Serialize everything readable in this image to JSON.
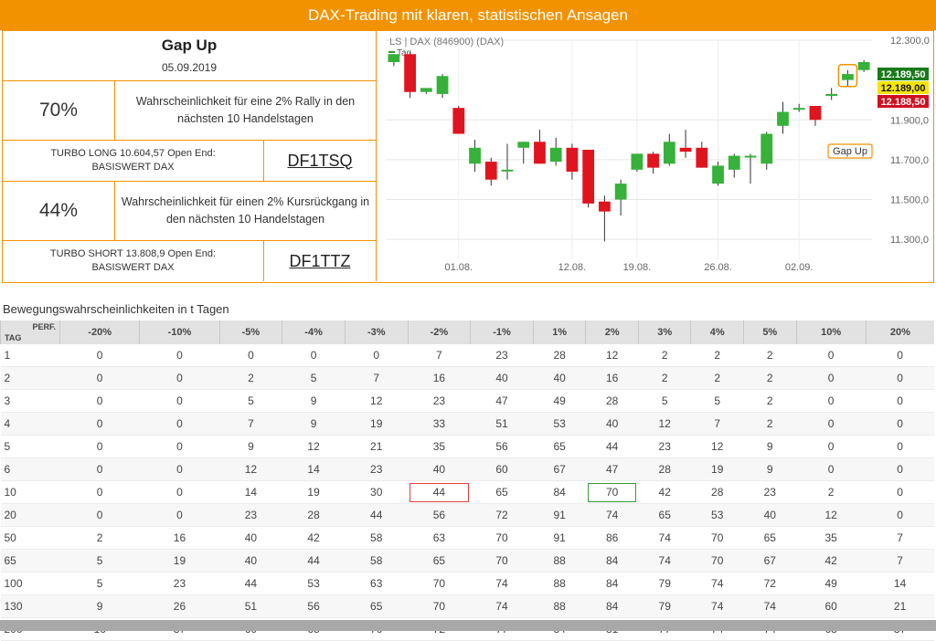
{
  "banner": "DAX-Trading mit klaren, statistischen Ansagen",
  "signal": {
    "title": "Gap Up",
    "date": "05.09.2019"
  },
  "long": {
    "pct": "70%",
    "desc": "Wahrscheinlichkeit für eine 2% Rally in den nächsten 10 Handelstagen",
    "turbo_line1": "TURBO LONG 10.604,57 Open End:",
    "turbo_line2": "BASISWERT DAX",
    "wkn": "DF1TSQ"
  },
  "short": {
    "pct": "44%",
    "desc": "Wahrscheinlichkeit für einen 2% Kursrückgang in den nächsten 10 Handelstagen",
    "turbo_line1": "TURBO SHORT 13.808,9 Open End:",
    "turbo_line2": "BASISWERT DAX",
    "wkn": "DF1TTZ"
  },
  "chart_data": {
    "type": "candlestick",
    "title": "LS | DAX (846900) (DAX)",
    "legend": "Tag",
    "ylim": [
      11200,
      12300
    ],
    "yticks": [
      12300,
      11900,
      11700,
      11500,
      11300
    ],
    "ytick_labels": [
      "12.300,0",
      "11.900,0",
      "11.700,0",
      "11.500,0",
      "11.300,0"
    ],
    "xtick_labels": [
      "01.08.",
      "12.08.",
      "19.08.",
      "26.08.",
      "02.09."
    ],
    "xtick_index": [
      4,
      11,
      15,
      20,
      25
    ],
    "price_tags": [
      {
        "label": "12.189,50",
        "value": 12189.5,
        "color": "#1a7a1a"
      },
      {
        "label": "12.189,00",
        "value": 12189.0,
        "color": "#f5e600"
      },
      {
        "label": "12.188,50",
        "value": 12188.5,
        "color": "#d01020"
      }
    ],
    "annotation": {
      "label": "Gap Up",
      "index": 28
    },
    "candles": [
      {
        "o": 12190,
        "h": 12230,
        "l": 12170,
        "c": 12230
      },
      {
        "o": 12230,
        "h": 12240,
        "l": 12010,
        "c": 12040
      },
      {
        "o": 12040,
        "h": 12060,
        "l": 12030,
        "c": 12060
      },
      {
        "o": 12030,
        "h": 12130,
        "l": 12010,
        "c": 12120
      },
      {
        "o": 11960,
        "h": 11970,
        "l": 11830,
        "c": 11830
      },
      {
        "o": 11680,
        "h": 11800,
        "l": 11640,
        "c": 11760
      },
      {
        "o": 11690,
        "h": 11710,
        "l": 11570,
        "c": 11600
      },
      {
        "o": 11650,
        "h": 11780,
        "l": 11600,
        "c": 11650
      },
      {
        "o": 11760,
        "h": 11790,
        "l": 11680,
        "c": 11790
      },
      {
        "o": 11790,
        "h": 11850,
        "l": 11680,
        "c": 11680
      },
      {
        "o": 11690,
        "h": 11810,
        "l": 11670,
        "c": 11760
      },
      {
        "o": 11760,
        "h": 11780,
        "l": 11600,
        "c": 11640
      },
      {
        "o": 11750,
        "h": 11750,
        "l": 11460,
        "c": 11480
      },
      {
        "o": 11490,
        "h": 11520,
        "l": 11290,
        "c": 11440
      },
      {
        "o": 11500,
        "h": 11600,
        "l": 11420,
        "c": 11580
      },
      {
        "o": 11650,
        "h": 11730,
        "l": 11640,
        "c": 11730
      },
      {
        "o": 11730,
        "h": 11740,
        "l": 11630,
        "c": 11660
      },
      {
        "o": 11680,
        "h": 11830,
        "l": 11670,
        "c": 11790
      },
      {
        "o": 11760,
        "h": 11850,
        "l": 11710,
        "c": 11740
      },
      {
        "o": 11760,
        "h": 11790,
        "l": 11660,
        "c": 11660
      },
      {
        "o": 11580,
        "h": 11690,
        "l": 11570,
        "c": 11670
      },
      {
        "o": 11650,
        "h": 11730,
        "l": 11610,
        "c": 11720
      },
      {
        "o": 11720,
        "h": 11730,
        "l": 11580,
        "c": 11720
      },
      {
        "o": 11680,
        "h": 11840,
        "l": 11650,
        "c": 11830
      },
      {
        "o": 11870,
        "h": 11990,
        "l": 11830,
        "c": 11940
      },
      {
        "o": 11960,
        "h": 11980,
        "l": 11940,
        "c": 11960
      },
      {
        "o": 11970,
        "h": 11970,
        "l": 11870,
        "c": 11900
      },
      {
        "o": 12020,
        "h": 12060,
        "l": 12000,
        "c": 12030
      },
      {
        "o": 12100,
        "h": 12150,
        "l": 12070,
        "c": 12130
      },
      {
        "o": 12150,
        "h": 12200,
        "l": 12140,
        "c": 12190
      }
    ]
  },
  "table": {
    "title": "Bewegungswahrscheinlichkeiten in t Tagen",
    "corner_top": "PERF.",
    "corner_bottom": "TAG",
    "columns": [
      "-20%",
      "-10%",
      "-5%",
      "-4%",
      "-3%",
      "-2%",
      "-1%",
      "1%",
      "2%",
      "3%",
      "4%",
      "5%",
      "10%",
      "20%"
    ],
    "rows": [
      {
        "tag": "1",
        "values": [
          "0",
          "0",
          "0",
          "0",
          "0",
          "7",
          "23",
          "28",
          "12",
          "2",
          "2",
          "2",
          "0",
          "0"
        ]
      },
      {
        "tag": "2",
        "values": [
          "0",
          "0",
          "2",
          "5",
          "7",
          "16",
          "40",
          "40",
          "16",
          "2",
          "2",
          "2",
          "0",
          "0"
        ]
      },
      {
        "tag": "3",
        "values": [
          "0",
          "0",
          "5",
          "9",
          "12",
          "23",
          "47",
          "49",
          "28",
          "5",
          "5",
          "2",
          "0",
          "0"
        ]
      },
      {
        "tag": "4",
        "values": [
          "0",
          "0",
          "7",
          "9",
          "19",
          "33",
          "51",
          "53",
          "40",
          "12",
          "7",
          "2",
          "0",
          "0"
        ]
      },
      {
        "tag": "5",
        "values": [
          "0",
          "0",
          "9",
          "12",
          "21",
          "35",
          "56",
          "65",
          "44",
          "23",
          "12",
          "9",
          "0",
          "0"
        ]
      },
      {
        "tag": "6",
        "values": [
          "0",
          "0",
          "12",
          "14",
          "23",
          "40",
          "60",
          "67",
          "47",
          "28",
          "19",
          "9",
          "0",
          "0"
        ]
      },
      {
        "tag": "10",
        "values": [
          "0",
          "0",
          "14",
          "19",
          "30",
          "44",
          "65",
          "84",
          "70",
          "42",
          "28",
          "23",
          "2",
          "0"
        ]
      },
      {
        "tag": "20",
        "values": [
          "0",
          "0",
          "23",
          "28",
          "44",
          "56",
          "72",
          "91",
          "74",
          "65",
          "53",
          "40",
          "12",
          "0"
        ]
      },
      {
        "tag": "50",
        "values": [
          "2",
          "16",
          "40",
          "42",
          "58",
          "63",
          "70",
          "91",
          "86",
          "74",
          "70",
          "65",
          "35",
          "7"
        ]
      },
      {
        "tag": "65",
        "values": [
          "5",
          "19",
          "40",
          "44",
          "58",
          "65",
          "70",
          "88",
          "84",
          "74",
          "70",
          "67",
          "42",
          "7"
        ]
      },
      {
        "tag": "100",
        "values": [
          "5",
          "23",
          "44",
          "53",
          "63",
          "70",
          "74",
          "88",
          "84",
          "79",
          "74",
          "72",
          "49",
          "14"
        ]
      },
      {
        "tag": "130",
        "values": [
          "9",
          "26",
          "51",
          "56",
          "65",
          "70",
          "74",
          "88",
          "84",
          "79",
          "74",
          "74",
          "60",
          "21"
        ]
      },
      {
        "tag": "200",
        "values": [
          "16",
          "37",
          "60",
          "65",
          "70",
          "72",
          "77",
          "84",
          "81",
          "77",
          "74",
          "74",
          "63",
          "37"
        ]
      }
    ],
    "highlights": [
      {
        "row": 6,
        "col": 5,
        "style": "red"
      },
      {
        "row": 6,
        "col": 8,
        "style": "green"
      }
    ]
  }
}
